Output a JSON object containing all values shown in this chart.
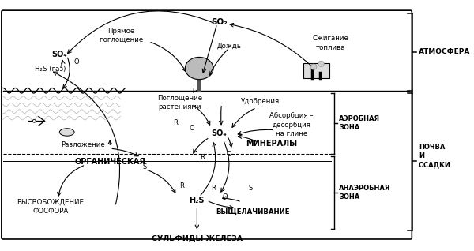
{
  "bg_color": "#ffffff",
  "zone_atm": "АТМОСФЕРА",
  "zone_aerob": "АЭРОБНАЯ\nЗОНА",
  "zone_pochva": "ПОЧВА\nИ\nОСАДКИ",
  "zone_anaerob": "АНАЭРОБНАЯ\nЗОНА",
  "lbl_organic": "ОРГАНИЧЕСКАЯ",
  "lbl_minerals": "МИНЕРАЛЫ",
  "lbl_sulphidy": "СУЛЬФИДЫ ЖЕЛЕЗА",
  "lbl_vyshel": "ВЫЩЕЛАЧИВАНИЕ",
  "lbl_vys_fosfora": "ВЫСВОБОЖДЕНИЕ\nФОСФОРА",
  "lbl_razlozh": "Разложение",
  "lbl_poglosh": "Поглощение\nрастениями",
  "lbl_pryamoe": "Прямое\nпоглощение",
  "lbl_udobr": "Удобрения",
  "lbl_absorb": "Абсорбция –\nдесорбция\nна глине",
  "lbl_szhig": "Сжигание\nтоплива",
  "lbl_dozhd": "Дождь",
  "lbl_SO4_atm": "SO₄",
  "lbl_H2S_gas": "H₂S (газ)",
  "lbl_O_left": "O",
  "lbl_SO2_top": "SO₂",
  "lbl_SO4_cen": "SO₄",
  "lbl_H2S_cen": "H₂S"
}
